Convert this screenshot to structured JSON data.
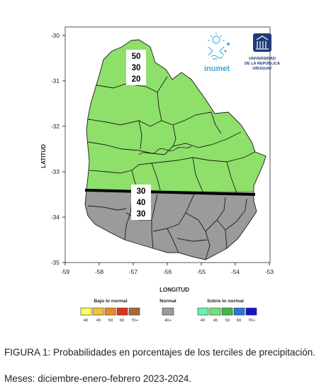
{
  "map": {
    "y_axis": {
      "title": "LATITUD",
      "ticks": [
        "-30",
        "-31",
        "-32",
        "-33",
        "-34",
        "-35"
      ]
    },
    "x_axis": {
      "title": "LONGITUD",
      "ticks": [
        "-59",
        "-58",
        "-57",
        "-56",
        "-55",
        "-54",
        "-53"
      ]
    },
    "regions": [
      {
        "name": "north",
        "color": "#8ee06a",
        "probabilities": [
          "50",
          "30",
          "20"
        ]
      },
      {
        "name": "south",
        "color": "#9b9b9b",
        "probabilities": [
          "30",
          "40",
          "30"
        ]
      }
    ],
    "colors": {
      "green": "#8ee06a",
      "gray": "#9b9b9b",
      "border": "#1a1a1a",
      "divider": "#000000"
    }
  },
  "logos": {
    "inumet": "inumet",
    "universidad": [
      "UNIVERSIDAD",
      "DE LA REPÚBLICA",
      "URUGUAY"
    ]
  },
  "legend": {
    "below": {
      "title": "Bajo lo normal",
      "labels": [
        "40",
        "45",
        "50",
        "60",
        "70+"
      ],
      "colors": [
        "#ffff66",
        "#f2c23a",
        "#ec8a2c",
        "#d9341c",
        "#a86a3c"
      ]
    },
    "normal": {
      "title": "Normal",
      "labels": [
        "40+"
      ],
      "colors": [
        "#9b9b9b"
      ]
    },
    "above": {
      "title": "Sobre lo normal",
      "labels": [
        "40",
        "45",
        "50",
        "60",
        "70+"
      ],
      "colors": [
        "#66f0b4",
        "#6fe37a",
        "#3fb84a",
        "#2a78d8",
        "#1414c8"
      ]
    }
  },
  "caption": {
    "line1": "FIGURA   1: Probabilidades en porcentajes de los terciles de precipitación.",
    "line2": "Meses: diciembre-enero-febrero 2023-2024."
  }
}
